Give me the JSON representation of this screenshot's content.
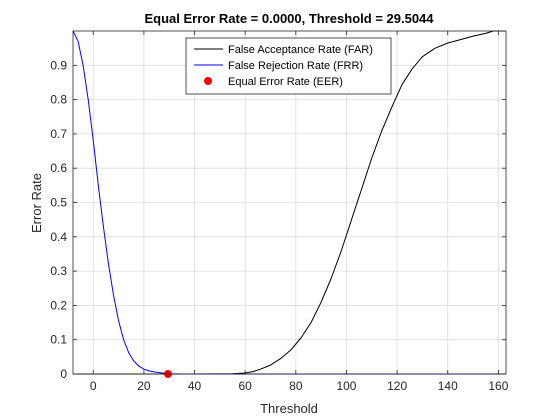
{
  "chart_data": {
    "type": "line",
    "title": "Equal Error Rate = 0.0000, Threshold = 29.5044",
    "xlabel": "Threshold",
    "ylabel": "Error Rate",
    "xlim": [
      -8,
      163
    ],
    "ylim": [
      0,
      1
    ],
    "xticks": [
      "0",
      "20",
      "40",
      "60",
      "80",
      "100",
      "120",
      "140",
      "160"
    ],
    "yticks": [
      "0",
      "0.1",
      "0.2",
      "0.3",
      "0.4",
      "0.5",
      "0.6",
      "0.7",
      "0.8",
      "0.9"
    ],
    "grid": true,
    "legend_position": "top-right",
    "series": [
      {
        "name": "False Acceptance Rate (FAR)",
        "color": "#000000",
        "x": [
          -8,
          40,
          55,
          60,
          63,
          66,
          70,
          74,
          78,
          82,
          86,
          90,
          94,
          98,
          102,
          106,
          110,
          114,
          118,
          122,
          126,
          130,
          135,
          140,
          145,
          150,
          155,
          158,
          163
        ],
        "y": [
          0,
          0,
          0.001,
          0.003,
          0.007,
          0.014,
          0.026,
          0.045,
          0.07,
          0.105,
          0.15,
          0.21,
          0.28,
          0.36,
          0.45,
          0.54,
          0.63,
          0.71,
          0.78,
          0.845,
          0.89,
          0.925,
          0.95,
          0.965,
          0.975,
          0.985,
          0.993,
          1.0,
          1.0
        ]
      },
      {
        "name": "False Rejection Rate (FRR)",
        "color": "#0000FF",
        "x": [
          -8,
          -6,
          -4,
          -2,
          0,
          2,
          4,
          6,
          8,
          10,
          12,
          14,
          16,
          18,
          20,
          22,
          24,
          26,
          28,
          30,
          35,
          40,
          50,
          60,
          163
        ],
        "y": [
          1.0,
          0.97,
          0.9,
          0.8,
          0.68,
          0.55,
          0.43,
          0.32,
          0.23,
          0.155,
          0.1,
          0.062,
          0.038,
          0.023,
          0.014,
          0.009,
          0.006,
          0.004,
          0.002,
          0.001,
          0,
          0,
          0,
          0,
          0
        ]
      }
    ],
    "markers": [
      {
        "name": "Equal Error Rate (EER)",
        "color": "#FF0000",
        "x": 29.5044,
        "y": 0
      }
    ]
  }
}
